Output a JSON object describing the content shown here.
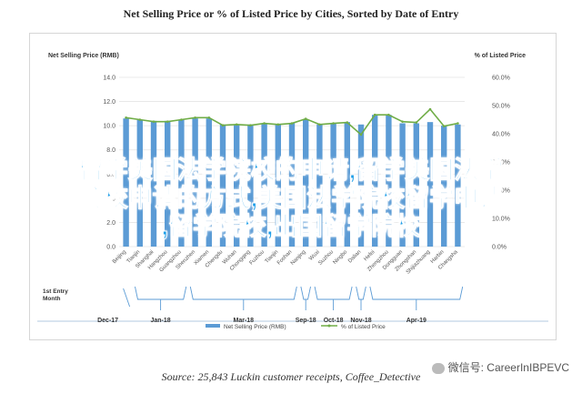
{
  "title": "Net Selling Price or % of Listed Price by Cities, Sorted by Date of Entry",
  "source": "Source: 25,843 Luckin customer receipts, Coffee_Detective",
  "watermark": "微信号: CareerInIBPEVC",
  "overlay_lines": [
    "留学美国法学院校的申请,留学美国法学",
    "院校申请的方式,美国法学院校留学申请",
    ",留学院校,出国留学院校"
  ],
  "colors": {
    "bar": "#5b9bd5",
    "line": "#70ad47",
    "axis": "#888888",
    "grid": "#e4e4e4",
    "overlay": "#1e9ee8"
  },
  "chart_data": {
    "type": "bar",
    "ylabel_left": "Net Selling Price (RMB)",
    "ylabel_right": "% of Listed Price",
    "ylim_left": [
      0,
      14
    ],
    "ylim_right": [
      0,
      0.6
    ],
    "yticks_left": [
      "0.0",
      "2.0",
      "4.0",
      "6.0",
      "8.0",
      "10.0",
      "12.0",
      "14.0"
    ],
    "yticks_right": [
      "0.0%",
      "10.0%",
      "20.0%",
      "30.0%",
      "40.0%",
      "50.0%",
      "60.0%"
    ],
    "grid": true,
    "legend_position": "bottom",
    "categories": [
      "Beijing",
      "Tianjin",
      "Shanghai",
      "Hangzhou",
      "Guangzhou",
      "Shenzhen",
      "Xiamen",
      "Chengdu",
      "Wuhan",
      "Chongqing",
      "Fuzhou",
      "Tianjin",
      "Foshan",
      "Nanjing",
      "Wuxi",
      "Suzhou",
      "Ningbo",
      "Dalian",
      "Hefei",
      "Zhengzhou",
      "Dongguan",
      "Zhongshan",
      "Shijiazhuang",
      "Harbin",
      "Changsha"
    ],
    "series": [
      {
        "name": "Net Selling Price (RMB)",
        "type": "bar",
        "axis": "left",
        "values": [
          10.6,
          10.5,
          10.4,
          10.4,
          10.5,
          10.6,
          10.6,
          10.1,
          10.1,
          10.1,
          10.2,
          10.1,
          10.2,
          10.5,
          10.1,
          10.2,
          10.3,
          10.1,
          10.9,
          10.9,
          10.2,
          10.2,
          10.3,
          10.0,
          10.1
        ]
      },
      {
        "name": "% of Listed Price",
        "type": "line",
        "axis": "right",
        "values": [
          0.457,
          0.45,
          0.443,
          0.443,
          0.45,
          0.457,
          0.457,
          0.43,
          0.433,
          0.43,
          0.437,
          0.433,
          0.437,
          0.453,
          0.433,
          0.437,
          0.44,
          0.397,
          0.467,
          0.467,
          0.443,
          0.44,
          0.487,
          0.427,
          0.437
        ]
      }
    ],
    "timeline": {
      "label": "1st Entry Month",
      "months": [
        "Dec-17",
        "Jan-18",
        "Mar-18",
        "Sep-18",
        "Oct-18",
        "Nov-18",
        "Apr-19"
      ],
      "groups": [
        {
          "month": "Jan-18",
          "from": 1,
          "to": 4
        },
        {
          "month": "Mar-18",
          "from": 5,
          "to": 12
        },
        {
          "month": "Sep-18",
          "from": 13,
          "to": 13
        },
        {
          "month": "Oct-18",
          "from": 14,
          "to": 16
        },
        {
          "month": "Nov-18",
          "from": 17,
          "to": 17
        },
        {
          "month": "Apr-19",
          "from": 18,
          "to": 24
        }
      ],
      "solo": {
        "month": "Dec-17",
        "index": 0
      }
    }
  }
}
